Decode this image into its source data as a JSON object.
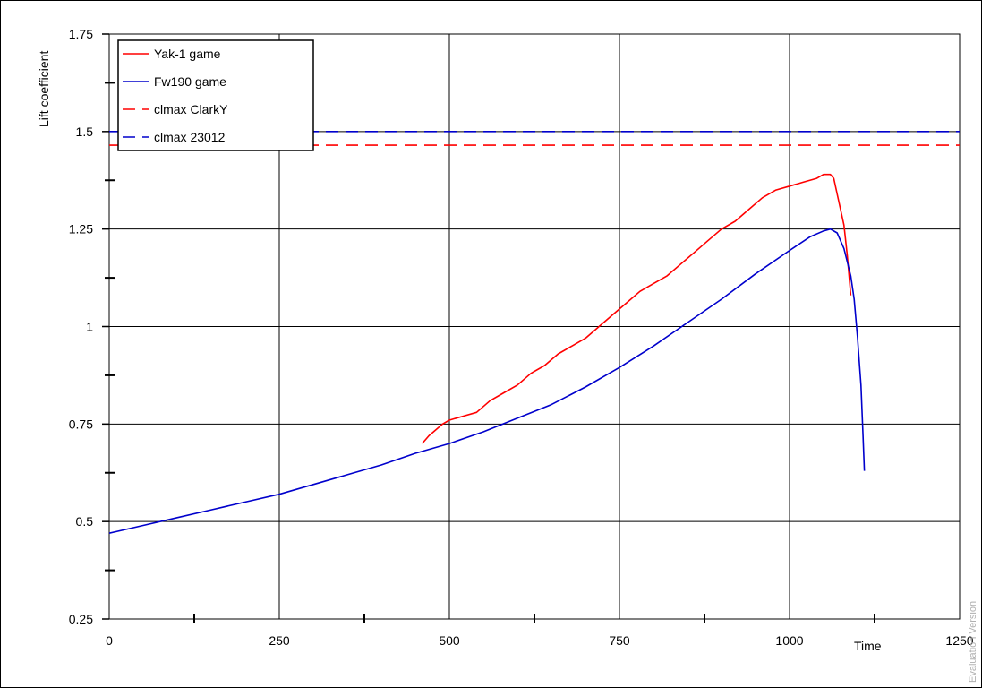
{
  "chart_data": {
    "type": "line",
    "xlabel": "Time",
    "ylabel": "Lift coefficient",
    "xlim": [
      0,
      1250
    ],
    "ylim": [
      0.25,
      1.75
    ],
    "x_ticks": [
      "0",
      "250",
      "500",
      "750",
      "1000",
      "1250"
    ],
    "x_tick_values": [
      0,
      250,
      500,
      750,
      1000,
      1250
    ],
    "y_ticks": [
      "0.25",
      "0.5",
      "0.75",
      "1",
      "1.25",
      "1.5",
      "1.75"
    ],
    "y_tick_values": [
      0.25,
      0.5,
      0.75,
      1,
      1.25,
      1.5,
      1.75
    ],
    "grid": true,
    "legend_position": "top-left",
    "series": [
      {
        "name": "Yak-1 game",
        "color": "#ff0000",
        "style": "solid",
        "x": [
          460,
          470,
          480,
          490,
          500,
          510,
          520,
          540,
          560,
          580,
          600,
          620,
          640,
          660,
          680,
          700,
          720,
          740,
          760,
          780,
          800,
          820,
          840,
          860,
          880,
          900,
          920,
          940,
          960,
          980,
          1000,
          1020,
          1040,
          1050,
          1060,
          1065,
          1070,
          1080,
          1085,
          1090
        ],
        "y": [
          0.7,
          0.72,
          0.735,
          0.75,
          0.76,
          0.765,
          0.77,
          0.78,
          0.81,
          0.83,
          0.85,
          0.88,
          0.9,
          0.93,
          0.95,
          0.97,
          1.0,
          1.03,
          1.06,
          1.09,
          1.11,
          1.13,
          1.16,
          1.19,
          1.22,
          1.25,
          1.27,
          1.3,
          1.33,
          1.35,
          1.36,
          1.37,
          1.38,
          1.39,
          1.39,
          1.38,
          1.34,
          1.26,
          1.18,
          1.08
        ]
      },
      {
        "name": "Fw190 game",
        "color": "#0000cc",
        "style": "solid",
        "x": [
          0,
          50,
          100,
          150,
          200,
          250,
          300,
          350,
          400,
          450,
          500,
          550,
          600,
          650,
          700,
          750,
          800,
          850,
          900,
          950,
          1000,
          1030,
          1050,
          1060,
          1070,
          1080,
          1090,
          1095,
          1100,
          1105,
          1108,
          1110
        ],
        "y": [
          0.47,
          0.49,
          0.51,
          0.53,
          0.55,
          0.57,
          0.595,
          0.62,
          0.645,
          0.675,
          0.7,
          0.73,
          0.765,
          0.8,
          0.845,
          0.895,
          0.95,
          1.01,
          1.07,
          1.135,
          1.195,
          1.23,
          1.245,
          1.25,
          1.24,
          1.2,
          1.13,
          1.07,
          0.97,
          0.85,
          0.72,
          0.63
        ]
      },
      {
        "name": "clmax ClarkY",
        "color": "#ff0000",
        "style": "dashed",
        "x": [
          0,
          1250
        ],
        "y": [
          1.465,
          1.465
        ]
      },
      {
        "name": "clmax 23012",
        "color": "#0000cc",
        "style": "dashed",
        "x": [
          0,
          1250
        ],
        "y": [
          1.5,
          1.5
        ]
      }
    ]
  },
  "watermark": "Evaluation Version"
}
